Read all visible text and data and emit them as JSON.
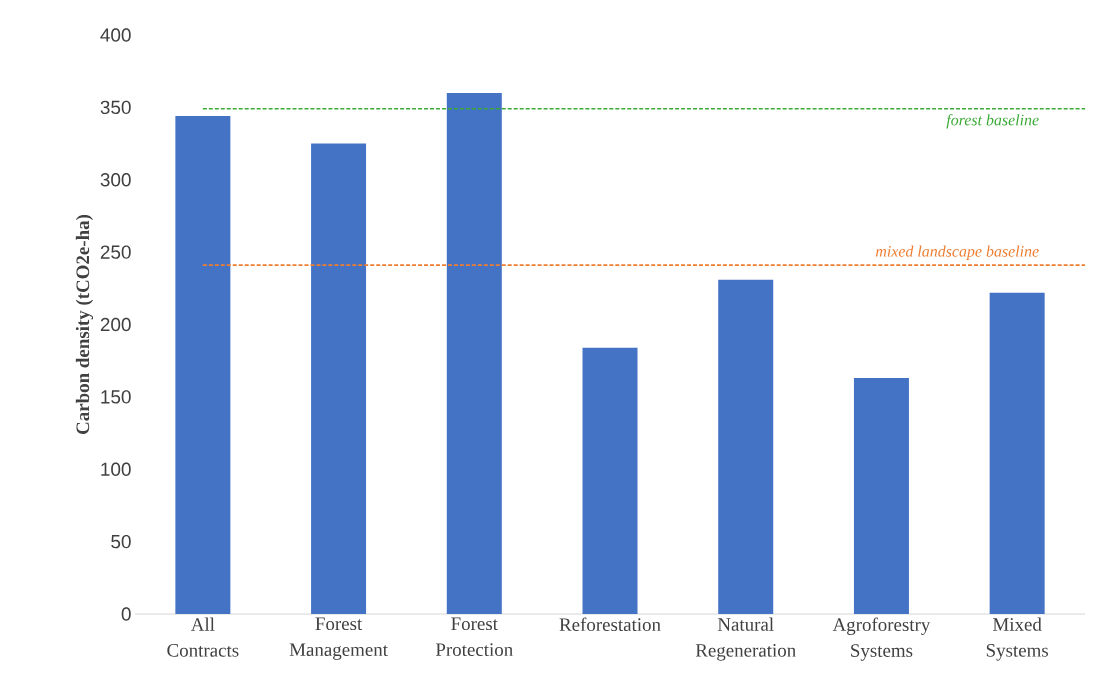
{
  "chart_data": {
    "type": "bar",
    "ylabel": "Carbon density (tCO2e-ha)",
    "categories": [
      "All Contracts",
      "Forest Management",
      "Forest Protection",
      "Reforestation",
      "Natural Regeneration",
      "Agroforestry Systems",
      "Mixed Systems"
    ],
    "values": [
      344,
      325,
      360,
      184,
      231,
      163,
      222
    ],
    "color": "#4472c4",
    "ylim": [
      0,
      400
    ],
    "yticks": [
      0,
      50,
      100,
      150,
      200,
      250,
      300,
      350,
      400
    ],
    "grid": false,
    "ref_lines": [
      {
        "axis": "y",
        "value": 349,
        "label": "forest baseline",
        "color": "#3aaa35",
        "line_style": "dashed"
      },
      {
        "axis": "y",
        "value": 241,
        "label": "mixed landscape baseline",
        "color": "#ed7d31",
        "line_style": "dashed"
      }
    ]
  }
}
